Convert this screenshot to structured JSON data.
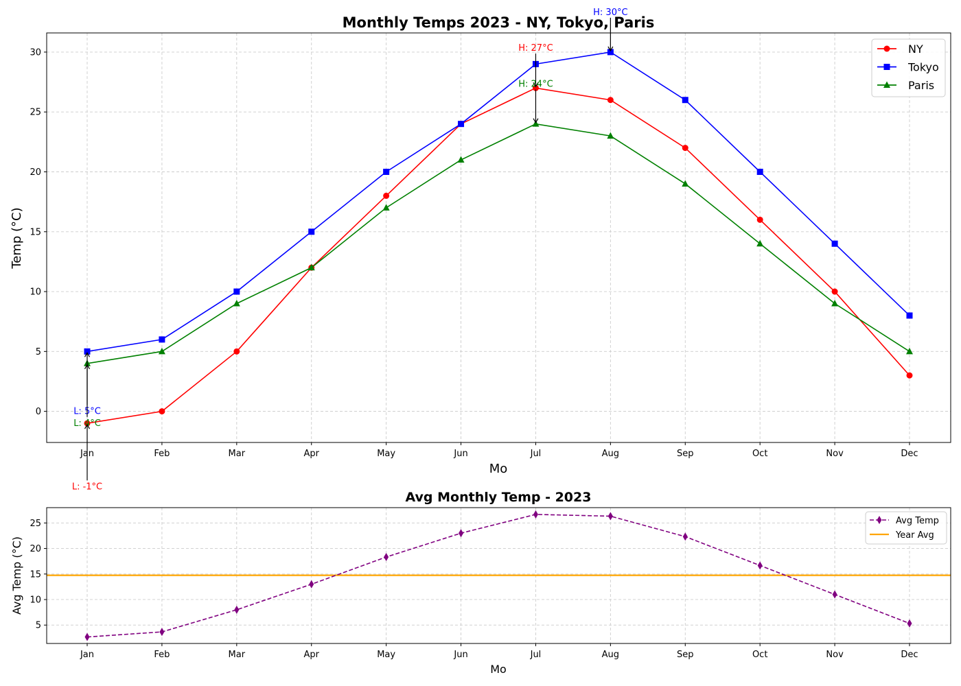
{
  "chart_data": [
    {
      "type": "line",
      "title": "Monthly Temps 2023 - NY, Tokyo, Paris",
      "xlabel": "Mo",
      "ylabel": "Temp (°C)",
      "categories": [
        "Jan",
        "Feb",
        "Mar",
        "Apr",
        "May",
        "Jun",
        "Jul",
        "Aug",
        "Sep",
        "Oct",
        "Nov",
        "Dec"
      ],
      "ylim": [
        -2.6,
        31.6
      ],
      "yticks": [
        "0",
        "5",
        "10",
        "15",
        "20",
        "25",
        "30"
      ],
      "grid": true,
      "legend_position": "top-right",
      "series": [
        {
          "name": "NY",
          "color": "#ff0000",
          "marker": "circle",
          "values": [
            -1,
            0,
            5,
            12,
            18,
            24,
            27,
            26,
            22,
            16,
            10,
            3
          ]
        },
        {
          "name": "Tokyo",
          "color": "#0000ff",
          "marker": "square",
          "values": [
            5,
            6,
            10,
            15,
            20,
            24,
            29,
            30,
            26,
            20,
            14,
            8
          ]
        },
        {
          "name": "Paris",
          "color": "#008000",
          "marker": "triangle",
          "values": [
            4,
            5,
            9,
            12,
            17,
            21,
            24,
            23,
            19,
            14,
            9,
            5
          ]
        }
      ],
      "annotations": [
        {
          "text": "H: 27°C",
          "color": "#ff0000",
          "month": "Jul",
          "value": 27,
          "text_value": 30.1
        },
        {
          "text": "H: 30°C",
          "color": "#0000ff",
          "month": "Aug",
          "value": 30,
          "text_value": 33.1
        },
        {
          "text": "H: 24°C",
          "color": "#008000",
          "month": "Jul",
          "value": 24,
          "text_value": 27.1
        },
        {
          "text": "L: -1°C",
          "color": "#ff0000",
          "month": "Jan",
          "value": -1,
          "text_value": -6
        },
        {
          "text": "L: 5°C",
          "color": "#0000ff",
          "month": "Jan",
          "value": 5,
          "text_value": 0.3
        },
        {
          "text": "L: 4°C",
          "color": "#008000",
          "month": "Jan",
          "value": 4,
          "text_value": -0.7
        }
      ]
    },
    {
      "type": "line",
      "title": "Avg Monthly Temp - 2023",
      "xlabel": "Mo",
      "ylabel": "Avg Temp (°C)",
      "categories": [
        "Jan",
        "Feb",
        "Mar",
        "Apr",
        "May",
        "Jun",
        "Jul",
        "Aug",
        "Sep",
        "Oct",
        "Nov",
        "Dec"
      ],
      "ylim": [
        1.4,
        28
      ],
      "yticks": [
        "5",
        "10",
        "15",
        "20",
        "25"
      ],
      "grid": true,
      "legend_position": "top-right",
      "series": [
        {
          "name": "Avg Temp",
          "color": "#800080",
          "marker": "thin-diamond",
          "dashed": true,
          "values": [
            2.67,
            3.67,
            8.0,
            13.0,
            18.33,
            23.0,
            26.67,
            26.33,
            22.33,
            16.67,
            11.0,
            5.33
          ]
        }
      ],
      "reference_lines": [
        {
          "name": "Year Avg",
          "color": "#ffa500",
          "value": 14.75
        }
      ]
    }
  ]
}
